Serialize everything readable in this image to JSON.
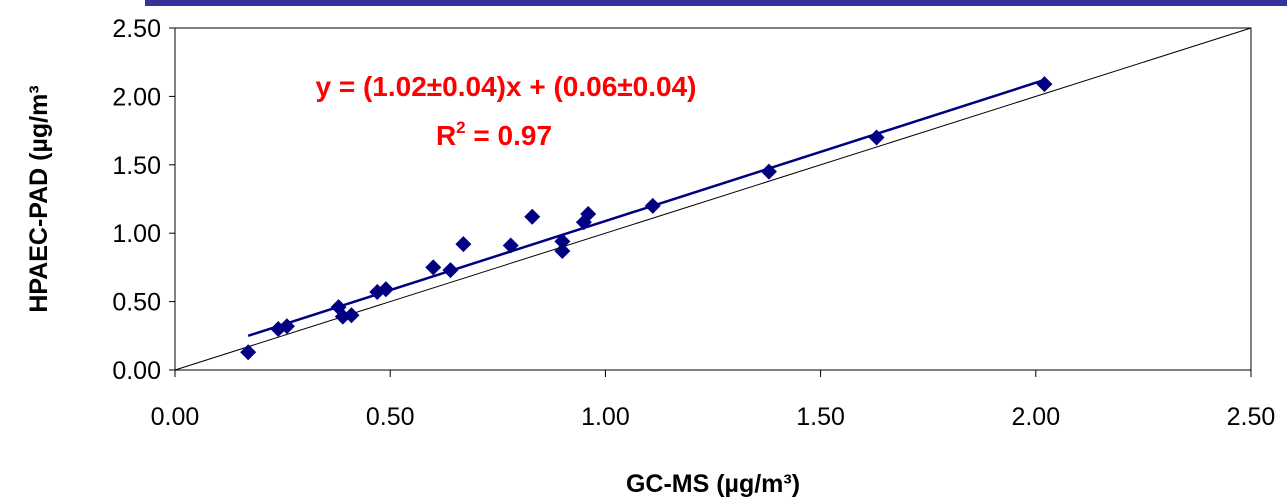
{
  "chart_data": {
    "type": "scatter",
    "xlabel": "GC-MS (µg/m³)",
    "ylabel": "HPAEC-PAD (µg/m³",
    "xlim": [
      0,
      2.5
    ],
    "ylim": [
      0,
      2.5
    ],
    "x_ticks": [
      "0.00",
      "0.50",
      "1.00",
      "1.50",
      "2.00",
      "2.50"
    ],
    "y_ticks": [
      "0.00",
      "0.50",
      "1.00",
      "1.50",
      "2.00",
      "2.50"
    ],
    "grid": false,
    "series": [
      {
        "points": [
          [
            0.17,
            0.13
          ],
          [
            0.24,
            0.3
          ],
          [
            0.26,
            0.32
          ],
          [
            0.38,
            0.46
          ],
          [
            0.39,
            0.39
          ],
          [
            0.41,
            0.4
          ],
          [
            0.47,
            0.57
          ],
          [
            0.49,
            0.59
          ],
          [
            0.6,
            0.75
          ],
          [
            0.64,
            0.73
          ],
          [
            0.67,
            0.92
          ],
          [
            0.78,
            0.91
          ],
          [
            0.83,
            1.12
          ],
          [
            0.9,
            0.87
          ],
          [
            0.9,
            0.94
          ],
          [
            0.95,
            1.08
          ],
          [
            0.96,
            1.14
          ],
          [
            1.11,
            1.2
          ],
          [
            1.38,
            1.45
          ],
          [
            1.63,
            1.7
          ],
          [
            2.02,
            2.09
          ]
        ]
      }
    ],
    "fit_line": {
      "x": [
        0.17,
        2.02
      ],
      "y": [
        0.25,
        2.12
      ]
    },
    "reference_line": {
      "x": [
        0,
        2.5
      ],
      "y": [
        0,
        2.5
      ]
    },
    "annotations": {
      "equation": "y = (1.02±0.04)x + (0.06±0.04)",
      "r2_label": "R",
      "r2_exponent": "2",
      "r2_value": " = 0.97"
    },
    "colors": {
      "markers": "#000080",
      "fit_line": "#000080",
      "reference_line": "#000000",
      "annotation": "#ff0000",
      "top_border": "#333399"
    }
  }
}
